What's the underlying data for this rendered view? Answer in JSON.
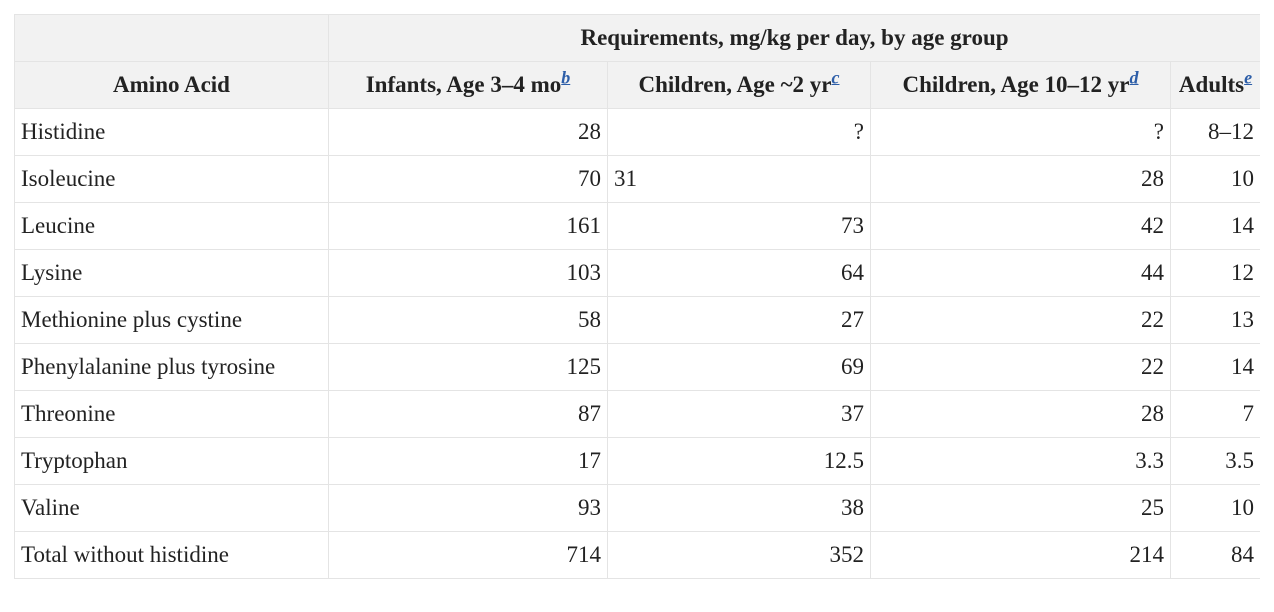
{
  "table": {
    "group_header": "Requirements, mg/kg per day, by age group",
    "columns": [
      {
        "label": "Amino Acid",
        "footnote": ""
      },
      {
        "label": "Infants, Age 3–4 mo",
        "footnote": "b"
      },
      {
        "label": "Children, Age ~2 yr",
        "footnote": "c"
      },
      {
        "label": "Children, Age 10–12 yr",
        "footnote": "d"
      },
      {
        "label": "Adults",
        "footnote": "e"
      }
    ],
    "rows": [
      {
        "name": "Histidine",
        "infants": "28",
        "children2": "?",
        "children10": "?",
        "adults": "8–12"
      },
      {
        "name": "Isoleucine",
        "infants": "70",
        "children2": "31",
        "children10": "28",
        "adults": "10"
      },
      {
        "name": "Leucine",
        "infants": "161",
        "children2": "73",
        "children10": "42",
        "adults": "14"
      },
      {
        "name": "Lysine",
        "infants": "103",
        "children2": "64",
        "children10": "44",
        "adults": "12"
      },
      {
        "name": "Methionine plus cystine",
        "infants": "58",
        "children2": "27",
        "children10": "22",
        "adults": "13"
      },
      {
        "name": "Phenylalanine plus tyrosine",
        "infants": "125",
        "children2": "69",
        "children10": "22",
        "adults": "14"
      },
      {
        "name": "Threonine",
        "infants": "87",
        "children2": "37",
        "children10": "28",
        "adults": "7"
      },
      {
        "name": "Tryptophan",
        "infants": "17",
        "children2": "12.5",
        "children10": "3.3",
        "adults": "3.5"
      },
      {
        "name": "Valine",
        "infants": "93",
        "children2": "38",
        "children10": "25",
        "adults": "10"
      },
      {
        "name": "Total without histidine",
        "infants": "714",
        "children2": "352",
        "children10": "214",
        "adults": "84"
      }
    ]
  }
}
